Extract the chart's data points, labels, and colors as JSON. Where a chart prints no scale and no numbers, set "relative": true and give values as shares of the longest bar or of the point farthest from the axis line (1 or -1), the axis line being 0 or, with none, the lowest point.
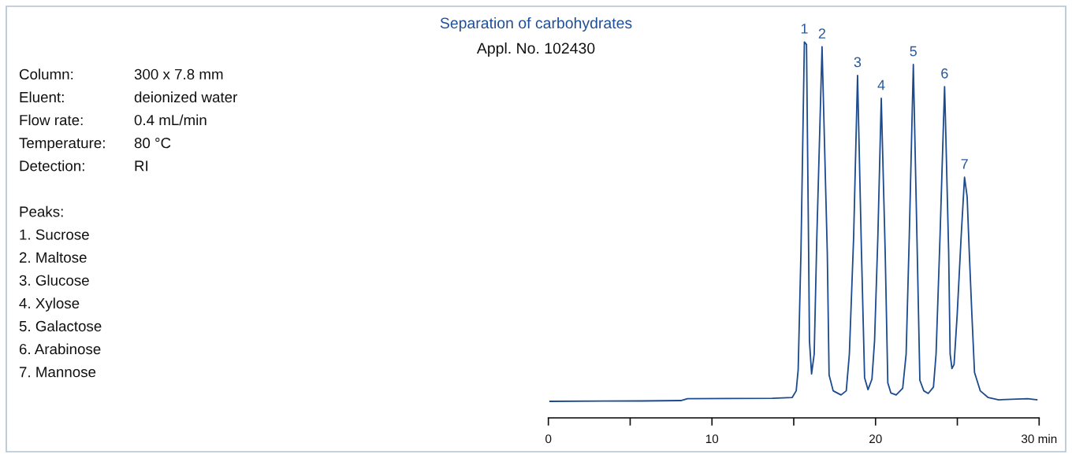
{
  "chart_data": {
    "type": "line",
    "title": "Separation of carbohydrates",
    "subtitle": "Appl. No. 102430",
    "relative": true,
    "xlim": [
      0,
      30
    ],
    "xticks": [
      0,
      {
        "value": 5,
        "label": null
      },
      10,
      {
        "value": 15,
        "label": null
      },
      20,
      {
        "value": 25,
        "label": null
      },
      {
        "value": 30,
        "label": "30 min"
      }
    ],
    "x": [
      0.1,
      5.7,
      8.1,
      8.5,
      13.7,
      14.9,
      15.15,
      15.27,
      15.44,
      15.65,
      15.78,
      15.91,
      15.96,
      16.09,
      16.25,
      16.41,
      16.73,
      17.05,
      17.16,
      17.41,
      17.89,
      18.21,
      18.4,
      18.66,
      18.9,
      19.14,
      19.33,
      19.54,
      19.78,
      19.94,
      20.14,
      20.35,
      20.59,
      20.75,
      20.94,
      21.26,
      21.66,
      21.87,
      22.06,
      22.31,
      22.55,
      22.71,
      22.95,
      23.22,
      23.54,
      23.7,
      23.94,
      24.22,
      24.27,
      24.47,
      24.56,
      24.67,
      24.8,
      24.99,
      25.23,
      25.44,
      25.6,
      25.73,
      25.89,
      26.05,
      26.4,
      26.89,
      27.53,
      28.65,
      29.3,
      29.86
    ],
    "series": [
      {
        "color": "#1b4a8f",
        "values": [
          0.044,
          0.045,
          0.046,
          0.051,
          0.052,
          0.054,
          0.072,
          0.128,
          0.44,
          1.0,
          0.993,
          0.44,
          0.205,
          0.117,
          0.17,
          0.48,
          0.987,
          0.44,
          0.114,
          0.072,
          0.061,
          0.072,
          0.17,
          0.48,
          0.911,
          0.44,
          0.107,
          0.075,
          0.103,
          0.205,
          0.48,
          0.85,
          0.44,
          0.093,
          0.066,
          0.061,
          0.079,
          0.17,
          0.48,
          0.94,
          0.44,
          0.1,
          0.072,
          0.065,
          0.082,
          0.17,
          0.48,
          0.881,
          0.8,
          0.44,
          0.17,
          0.131,
          0.142,
          0.274,
          0.48,
          0.64,
          0.588,
          0.44,
          0.274,
          0.121,
          0.072,
          0.054,
          0.048,
          0.05,
          0.051,
          0.048
        ]
      }
    ],
    "annotations": [
      {
        "text": "1",
        "x": 15.65,
        "y": 1.0
      },
      {
        "text": "2",
        "x": 16.73,
        "y": 0.987
      },
      {
        "text": "3",
        "x": 18.9,
        "y": 0.911
      },
      {
        "text": "4",
        "x": 20.35,
        "y": 0.85
      },
      {
        "text": "5",
        "x": 22.31,
        "y": 0.94
      },
      {
        "text": "6",
        "x": 24.22,
        "y": 0.881
      },
      {
        "text": "7",
        "x": 25.44,
        "y": 0.64
      },
      "Column:",
      "300 x 7.8 mm",
      "Eluent:",
      "deionized water",
      "Flow rate:",
      "0.4 mL/min",
      "Temperature:",
      "80 °C",
      "Detection:",
      "RI",
      "Peaks:",
      "1. Sucrose",
      "2. Maltose",
      "3. Glucose",
      "4. Xylose",
      "5. Galactose",
      "6. Arabinose",
      "7. Mannose"
    ]
  }
}
